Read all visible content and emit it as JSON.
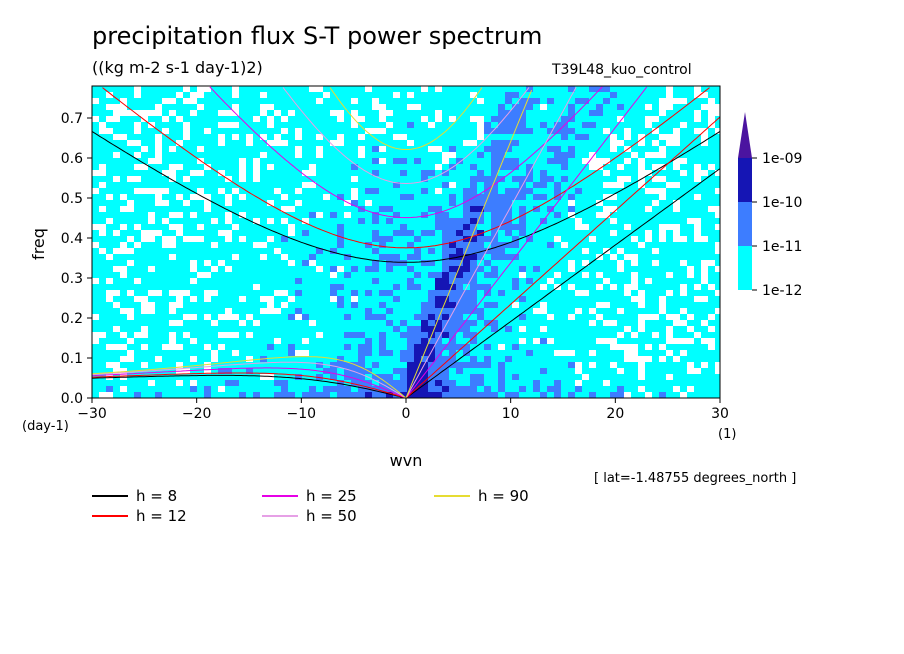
{
  "chart_data": {
    "type": "heatmap",
    "title": "precipitation flux S-T power spectrum",
    "units": "((kg m-2 s-1 day-1)2)",
    "run_name": "T39L48_kuo_control",
    "xlabel": "wvn",
    "ylabel": "freq",
    "x_unit": "(1)",
    "y_unit": "(day-1)",
    "xlim": [
      -30,
      30
    ],
    "ylim": [
      0,
      0.78
    ],
    "x_ticks": [
      "-30",
      "-20",
      "-10",
      "0",
      "10",
      "20",
      "30"
    ],
    "y_ticks": [
      "0.0",
      "0.1",
      "0.2",
      "0.3",
      "0.4",
      "0.5",
      "0.6",
      "0.7"
    ],
    "colorbar": {
      "levels": [
        "1e-12",
        "1e-11",
        "1e-10",
        "1e-09"
      ],
      "colors": [
        "#ffffff",
        "#00ffff",
        "#3d7dff",
        "#1515b4",
        "#4b14a0"
      ]
    },
    "annotation": "[ lat=-1.48755 degrees_north ]",
    "series": [
      {
        "name": "h =  8",
        "h": 8,
        "color": "#000000"
      },
      {
        "name": "h = 12",
        "h": 12,
        "color": "#ff0000"
      },
      {
        "name": "h = 25",
        "h": 25,
        "color": "#e600e6"
      },
      {
        "name": "h = 50",
        "h": 50,
        "color": "#e6a0e6"
      },
      {
        "name": "h = 90",
        "h": 90,
        "color": "#e6dc32"
      }
    ]
  }
}
